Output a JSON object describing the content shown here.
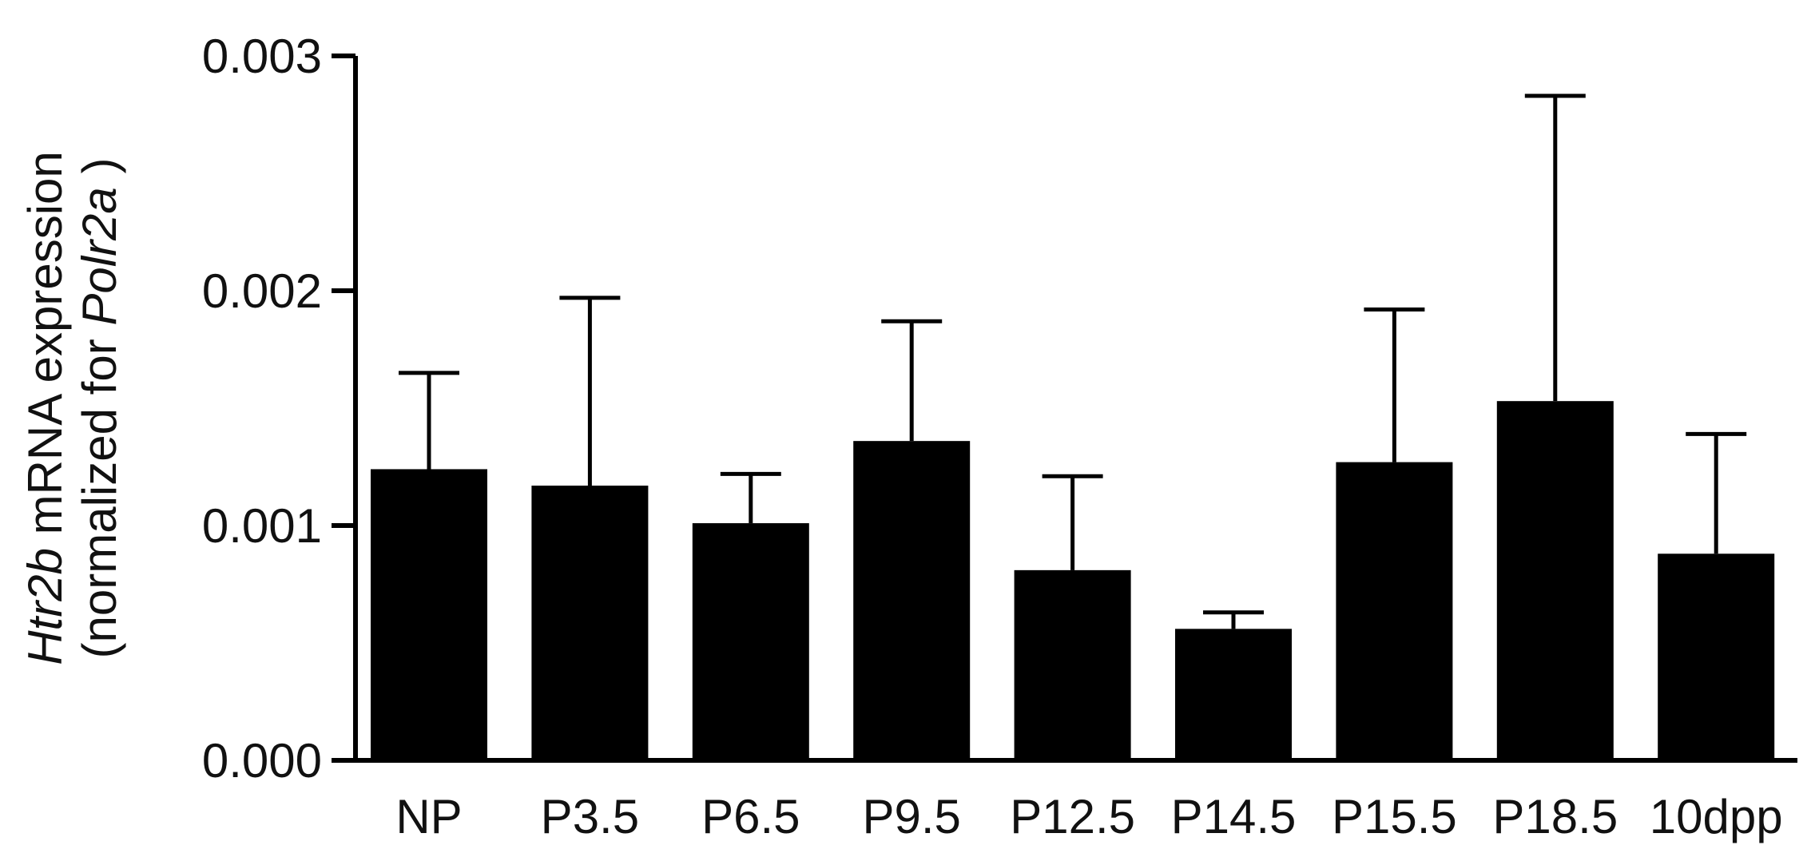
{
  "chart_data": {
    "type": "bar",
    "title": "",
    "xlabel": "",
    "ylabel_parts": [
      {
        "text": "Htr2b",
        "italic": true
      },
      {
        "text": " mRNA expression",
        "italic": false
      }
    ],
    "ylabel2_parts": [
      {
        "text": "(normalized for ",
        "italic": false
      },
      {
        "text": "Polr2a",
        "italic": true
      },
      {
        "text": " )",
        "italic": false
      }
    ],
    "ylim": [
      0,
      0.003
    ],
    "yticks": [
      "0.000",
      "0.001",
      "0.002",
      "0.003"
    ],
    "ytick_values": [
      0,
      0.001,
      0.002,
      0.003
    ],
    "categories": [
      "NP",
      "P3.5",
      "P6.5",
      "P9.5",
      "P12.5",
      "P14.5",
      "P15.5",
      "P18.5",
      "10dpp"
    ],
    "values": [
      0.00124,
      0.00117,
      0.00101,
      0.00136,
      0.00081,
      0.00056,
      0.00127,
      0.00153,
      0.00088
    ],
    "error_upper": [
      0.00165,
      0.00197,
      0.00122,
      0.00187,
      0.00121,
      0.00063,
      0.00192,
      0.00283,
      0.00139
    ],
    "bar_color": "#000000",
    "grid": false,
    "legend": "none"
  }
}
